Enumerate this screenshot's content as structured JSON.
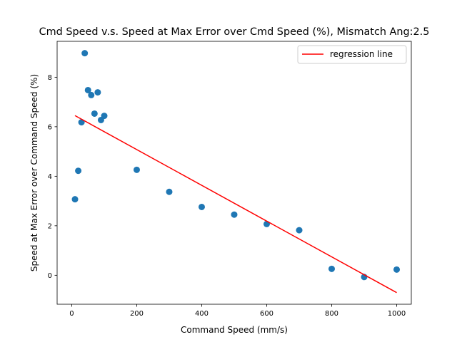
{
  "chart_data": {
    "type": "scatter",
    "title": "Cmd Speed v.s. Speed at Max Error over Cmd Speed (%), Mismatch Ang:2.5",
    "xlabel": "Command Speed (mm/s)",
    "ylabel": "Speed at Max Error over Command Speed (%)",
    "xlim": [
      -45,
      1045
    ],
    "ylim": [
      -1.17,
      9.45
    ],
    "xticks": [
      0,
      200,
      400,
      600,
      800,
      1000
    ],
    "yticks": [
      0,
      2,
      4,
      6,
      8
    ],
    "grid": false,
    "legend_position": "top-right",
    "series": [
      {
        "kind": "scatter",
        "color": "#1f77b4",
        "points": [
          {
            "x": 10,
            "y": 3.07
          },
          {
            "x": 20,
            "y": 4.22
          },
          {
            "x": 30,
            "y": 6.18
          },
          {
            "x": 40,
            "y": 8.97
          },
          {
            "x": 50,
            "y": 7.48
          },
          {
            "x": 60,
            "y": 7.28
          },
          {
            "x": 70,
            "y": 6.53
          },
          {
            "x": 80,
            "y": 7.39
          },
          {
            "x": 90,
            "y": 6.27
          },
          {
            "x": 100,
            "y": 6.44
          },
          {
            "x": 200,
            "y": 4.26
          },
          {
            "x": 300,
            "y": 3.37
          },
          {
            "x": 400,
            "y": 2.76
          },
          {
            "x": 500,
            "y": 2.45
          },
          {
            "x": 600,
            "y": 2.07
          },
          {
            "x": 700,
            "y": 1.82
          },
          {
            "x": 800,
            "y": 0.26
          },
          {
            "x": 900,
            "y": -0.07
          },
          {
            "x": 1000,
            "y": 0.23
          }
        ]
      },
      {
        "kind": "line",
        "name": "regression line",
        "color": "#ff0000",
        "points": [
          {
            "x": 10,
            "y": 6.45
          },
          {
            "x": 1000,
            "y": -0.7
          }
        ]
      }
    ]
  }
}
